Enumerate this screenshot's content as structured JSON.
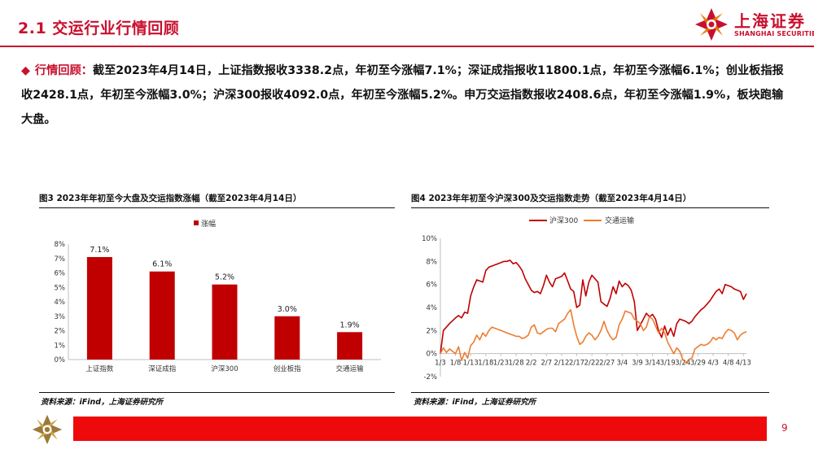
{
  "header": {
    "title": "2.1 交运行业行情回顾"
  },
  "brand": {
    "name_cn": "上海证券",
    "name_en": "SHANGHAI SECURITIES",
    "color": "#c8102e"
  },
  "summary": {
    "bullet": "◆",
    "label": "行情回顾：",
    "text": "截至2023年4月14日，上证指数报收3338.2点，年初至今涨幅7.1%；深证成指报收11800.1点，年初至今涨幅6.1%；创业板指报收2428.1点，年初至今涨幅3.0%；沪深300报收4092.0点，年初至今涨幅5.2%。申万交运指数报收2408.6点，年初至今涨幅1.9%，板块跑输大盘。"
  },
  "figure3": {
    "title": "图3 2023年年初至今大盘及交运指数涨幅（截至2023年4月14日）",
    "source": "资料来源：iFind，上海证券研究所"
  },
  "figure4": {
    "title": "图4 2023年年初至今沪深300及交运指数走势（截至2023年4月14日）",
    "source": "资料来源：iFind，上海证券研究所"
  },
  "page_number": "9",
  "chart_data": [
    {
      "type": "bar",
      "categories": [
        "上证指数",
        "深证成指",
        "沪深300",
        "创业板指",
        "交通运输"
      ],
      "series": [
        {
          "name": "涨幅",
          "values": [
            7.1,
            6.1,
            5.2,
            3.0,
            1.9
          ],
          "color": "#c00000"
        }
      ],
      "data_labels": [
        "7.1%",
        "6.1%",
        "5.2%",
        "3.0%",
        "1.9%"
      ],
      "ylim": [
        0,
        8
      ],
      "yticks": [
        "0%",
        "1%",
        "2%",
        "3%",
        "4%",
        "5%",
        "6%",
        "7%",
        "8%"
      ],
      "legend": "top",
      "grid": false
    },
    {
      "type": "line",
      "x_ticks": [
        "1/3",
        "1/8",
        "1/13",
        "1/18",
        "1/23",
        "1/28",
        "2/2",
        "2/7",
        "2/12",
        "2/17",
        "2/22",
        "2/27",
        "3/4",
        "3/9",
        "3/14",
        "3/19",
        "3/24",
        "3/29",
        "4/3",
        "4/8",
        "4/13"
      ],
      "x_days": [
        0,
        5,
        10,
        15,
        20,
        25,
        30,
        35,
        40,
        45,
        50,
        55,
        60,
        65,
        70,
        75,
        80,
        85,
        90,
        95,
        100
      ],
      "ylim": [
        -2,
        10
      ],
      "yticks": [
        "-2%",
        "0%",
        "2%",
        "4%",
        "6%",
        "8%",
        "10%"
      ],
      "legend": "top",
      "grid": false,
      "series": [
        {
          "name": "沪深300",
          "color": "#c00000",
          "points": [
            [
              0,
              0
            ],
            [
              1,
              2.0
            ],
            [
              3,
              2.6
            ],
            [
              5,
              3.1
            ],
            [
              6,
              3.3
            ],
            [
              7,
              3.1
            ],
            [
              8,
              3.6
            ],
            [
              9,
              3.5
            ],
            [
              10,
              5.0
            ],
            [
              11,
              5.8
            ],
            [
              12,
              6.4
            ],
            [
              13,
              6.3
            ],
            [
              14,
              6.2
            ],
            [
              15,
              7.2
            ],
            [
              16,
              7.5
            ],
            [
              17,
              7.6
            ],
            [
              18,
              7.7
            ],
            [
              19,
              7.8
            ],
            [
              20,
              7.9
            ],
            [
              21,
              8.0
            ],
            [
              22,
              8.0
            ],
            [
              23,
              8.1
            ],
            [
              24,
              7.8
            ],
            [
              25,
              7.9
            ],
            [
              26,
              7.6
            ],
            [
              27,
              7.2
            ],
            [
              28,
              6.5
            ],
            [
              29,
              6.0
            ],
            [
              30,
              5.5
            ],
            [
              31,
              5.3
            ],
            [
              32,
              5.4
            ],
            [
              33,
              5.2
            ],
            [
              34,
              5.9
            ],
            [
              35,
              6.8
            ],
            [
              36,
              6.2
            ],
            [
              37,
              5.8
            ],
            [
              38,
              6.5
            ],
            [
              39,
              6.6
            ],
            [
              40,
              6.7
            ],
            [
              41,
              7.0
            ],
            [
              42,
              6.3
            ],
            [
              43,
              5.6
            ],
            [
              44,
              5.4
            ],
            [
              45,
              4.0
            ],
            [
              46,
              4.2
            ],
            [
              47,
              6.4
            ],
            [
              48,
              5.0
            ],
            [
              49,
              6.2
            ],
            [
              50,
              6.8
            ],
            [
              51,
              6.5
            ],
            [
              52,
              6.2
            ],
            [
              53,
              4.5
            ],
            [
              54,
              4.3
            ],
            [
              55,
              4.1
            ],
            [
              56,
              4.8
            ],
            [
              57,
              5.8
            ],
            [
              58,
              5.2
            ],
            [
              59,
              6.3
            ],
            [
              60,
              5.8
            ],
            [
              61,
              6.1
            ],
            [
              62,
              5.9
            ],
            [
              63,
              5.5
            ],
            [
              64,
              4.5
            ],
            [
              65,
              2.0
            ],
            [
              66,
              2.5
            ],
            [
              67,
              3.0
            ],
            [
              68,
              3.5
            ],
            [
              69,
              3.2
            ],
            [
              70,
              3.4
            ],
            [
              71,
              3.0
            ],
            [
              72,
              2.0
            ],
            [
              73,
              1.4
            ],
            [
              74,
              2.4
            ],
            [
              75,
              1.6
            ],
            [
              76,
              2.2
            ],
            [
              77,
              1.5
            ],
            [
              78,
              2.6
            ],
            [
              79,
              3.0
            ],
            [
              80,
              2.9
            ],
            [
              81,
              2.8
            ],
            [
              82,
              2.6
            ],
            [
              83,
              2.8
            ],
            [
              84,
              3.2
            ],
            [
              85,
              3.5
            ],
            [
              86,
              3.8
            ],
            [
              87,
              4.0
            ],
            [
              88,
              4.3
            ],
            [
              89,
              4.6
            ],
            [
              90,
              5.0
            ],
            [
              91,
              5.4
            ],
            [
              92,
              5.6
            ],
            [
              93,
              5.2
            ],
            [
              94,
              6.0
            ],
            [
              95,
              5.9
            ],
            [
              96,
              5.8
            ],
            [
              97,
              5.6
            ],
            [
              98,
              5.5
            ],
            [
              99,
              5.4
            ],
            [
              100,
              4.7
            ],
            [
              101,
              5.2
            ]
          ]
        },
        {
          "name": "交通运输",
          "color": "#ed7d31",
          "points": [
            [
              0,
              0
            ],
            [
              1,
              0.5
            ],
            [
              2,
              0.1
            ],
            [
              3,
              0.4
            ],
            [
              4,
              0.2
            ],
            [
              5,
              0.0
            ],
            [
              6,
              0.6
            ],
            [
              7,
              -0.6
            ],
            [
              8,
              0.1
            ],
            [
              9,
              -0.4
            ],
            [
              10,
              0.7
            ],
            [
              11,
              1.0
            ],
            [
              12,
              1.6
            ],
            [
              13,
              1.2
            ],
            [
              14,
              1.8
            ],
            [
              15,
              1.5
            ],
            [
              16,
              2.0
            ],
            [
              17,
              2.3
            ],
            [
              18,
              2.2
            ],
            [
              19,
              2.1
            ],
            [
              20,
              2.0
            ],
            [
              21,
              1.9
            ],
            [
              22,
              1.8
            ],
            [
              23,
              1.7
            ],
            [
              24,
              1.6
            ],
            [
              25,
              1.5
            ],
            [
              26,
              1.5
            ],
            [
              27,
              1.3
            ],
            [
              28,
              1.4
            ],
            [
              29,
              1.6
            ],
            [
              30,
              2.3
            ],
            [
              31,
              2.5
            ],
            [
              32,
              1.8
            ],
            [
              33,
              1.7
            ],
            [
              34,
              1.9
            ],
            [
              35,
              2.1
            ],
            [
              36,
              2.2
            ],
            [
              37,
              2.2
            ],
            [
              38,
              1.9
            ],
            [
              39,
              2.6
            ],
            [
              40,
              2.8
            ],
            [
              41,
              3.0
            ],
            [
              42,
              3.5
            ],
            [
              43,
              3.8
            ],
            [
              44,
              2.5
            ],
            [
              45,
              1.5
            ],
            [
              46,
              0.8
            ],
            [
              47,
              1.0
            ],
            [
              48,
              1.5
            ],
            [
              49,
              1.8
            ],
            [
              50,
              1.6
            ],
            [
              51,
              1.2
            ],
            [
              52,
              1.5
            ],
            [
              53,
              2.0
            ],
            [
              54,
              2.8
            ],
            [
              55,
              2.0
            ],
            [
              56,
              1.5
            ],
            [
              57,
              1.2
            ],
            [
              58,
              1.4
            ],
            [
              59,
              2.5
            ],
            [
              60,
              3.0
            ],
            [
              61,
              3.7
            ],
            [
              62,
              3.6
            ],
            [
              63,
              3.5
            ],
            [
              64,
              3.0
            ],
            [
              65,
              2.8
            ],
            [
              66,
              2.6
            ],
            [
              67,
              2.0
            ],
            [
              68,
              2.3
            ],
            [
              69,
              3.2
            ],
            [
              70,
              3.0
            ],
            [
              71,
              2.4
            ],
            [
              72,
              1.8
            ],
            [
              73,
              2.2
            ],
            [
              74,
              1.8
            ],
            [
              75,
              1.0
            ],
            [
              76,
              0.5
            ],
            [
              77,
              0.0
            ],
            [
              78,
              0.5
            ],
            [
              79,
              0.2
            ],
            [
              80,
              -0.5
            ],
            [
              81,
              -0.8
            ],
            [
              82,
              -0.5
            ],
            [
              83,
              -0.4
            ],
            [
              84,
              0.4
            ],
            [
              85,
              0.6
            ],
            [
              86,
              0.8
            ],
            [
              87,
              0.7
            ],
            [
              88,
              0.8
            ],
            [
              89,
              1.0
            ],
            [
              90,
              1.4
            ],
            [
              91,
              1.2
            ],
            [
              92,
              1.4
            ],
            [
              93,
              1.3
            ],
            [
              94,
              1.8
            ],
            [
              95,
              2.1
            ],
            [
              96,
              2.0
            ],
            [
              97,
              1.8
            ],
            [
              98,
              1.2
            ],
            [
              99,
              1.6
            ],
            [
              100,
              1.8
            ],
            [
              101,
              1.9
            ]
          ]
        }
      ]
    }
  ]
}
